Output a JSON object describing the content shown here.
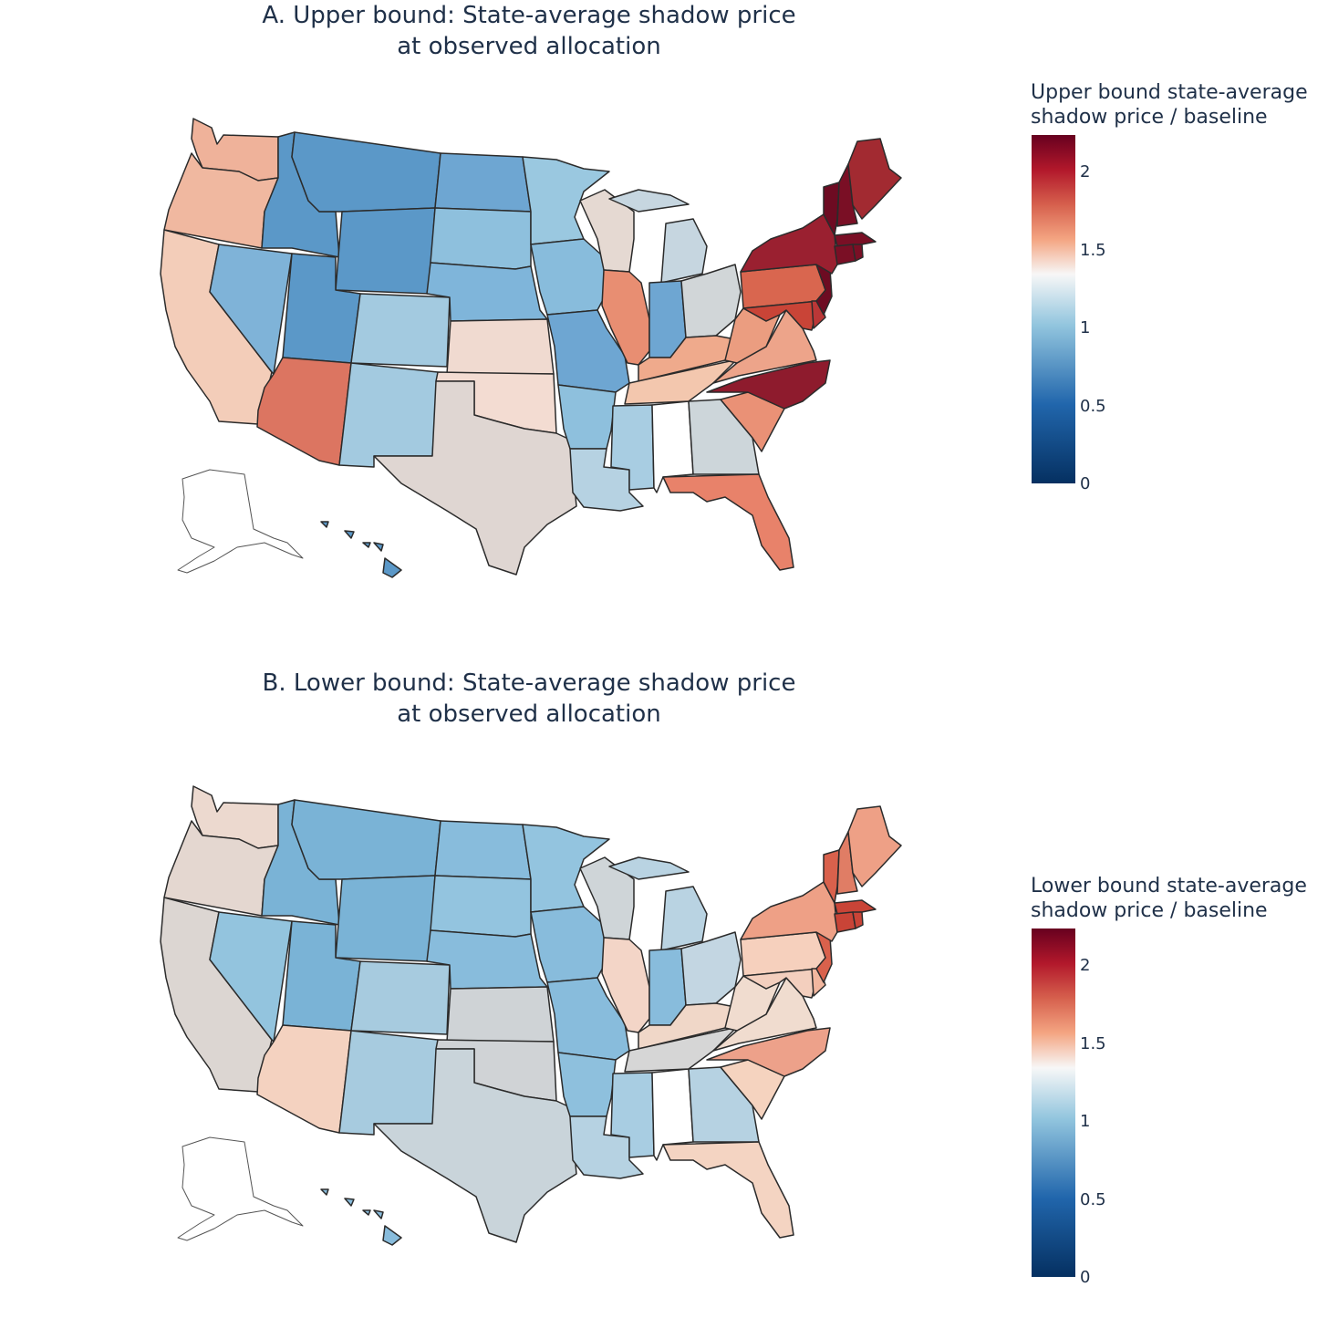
{
  "panels": [
    {
      "id": "A",
      "title_line1": "A. Upper bound: State-average shadow price",
      "title_line2": "at observed allocation",
      "colorbar": {
        "title_line1": "Upper bound state-average",
        "title_line2": "shadow price / baseline",
        "ticks": [
          "0",
          "0.5",
          "1",
          "1.5",
          "2"
        ]
      }
    },
    {
      "id": "B",
      "title_line1": "B. Lower bound: State-average shadow price",
      "title_line2": "at observed allocation",
      "colorbar": {
        "title_line1": "Lower bound state-average",
        "title_line2": "shadow price / baseline",
        "ticks": [
          "0",
          "0.5",
          "1",
          "1.5",
          "2"
        ]
      }
    }
  ],
  "colors": {
    "WA": [
      "#efb29a",
      "#ecd9cf"
    ],
    "OR": [
      "#f0b8a0",
      "#e4d7d0"
    ],
    "CA": [
      "#f3cdb9",
      "#dcd6d2"
    ],
    "ID": [
      "#5b98c8",
      "#7ab3d6"
    ],
    "NV": [
      "#7fb3d8",
      "#93c4de"
    ],
    "MT": [
      "#5b98c8",
      "#7ab3d6"
    ],
    "WY": [
      "#5b98c8",
      "#7ab3d6"
    ],
    "UT": [
      "#5b98c8",
      "#7ab3d6"
    ],
    "AZ": [
      "#dc7561",
      "#f4d2c0"
    ],
    "CO": [
      "#a3cae0",
      "#a7cbdf"
    ],
    "NM": [
      "#a3cae0",
      "#a7cbdf"
    ],
    "ND": [
      "#6ea6d2",
      "#88bcdc"
    ],
    "SD": [
      "#8ec0dd",
      "#93c4df"
    ],
    "NE": [
      "#7fb5da",
      "#88bcdc"
    ],
    "KS": [
      "#f0dad0",
      "#cfd3d6"
    ],
    "OK": [
      "#f3dcd2",
      "#d0d3d6"
    ],
    "TX": [
      "#dfd6d2",
      "#c9d4da"
    ],
    "MN": [
      "#9ac8e0",
      "#93c4df"
    ],
    "IA": [
      "#88bcdc",
      "#88bcdc"
    ],
    "MO": [
      "#6ea6d2",
      "#88bcdc"
    ],
    "AR": [
      "#8ec0dd",
      "#8ec0dd"
    ],
    "LA": [
      "#b6d2e2",
      "#b6d2e2"
    ],
    "WI": [
      "#e5d9d2",
      "#cfd5d8"
    ],
    "IL": [
      "#e88e72",
      "#f3d5c7"
    ],
    "MS": [
      "#a8cde2",
      "#a8cde2"
    ],
    "AL": [
      "#ffffff",
      "#ffffff"
    ],
    "MI": [
      "#c6d6e0",
      "#b9d3e2"
    ],
    "IN": [
      "#6ea6d2",
      "#88bcdc"
    ],
    "OH": [
      "#d1d6d8",
      "#c3d6e2"
    ],
    "KY": [
      "#efaa8c",
      "#f0d7c8"
    ],
    "TN": [
      "#f3c7ae",
      "#d6d6d6"
    ],
    "GA": [
      "#cdd6da",
      "#b6d2e2"
    ],
    "FL": [
      "#e8826a",
      "#f4d4c2"
    ],
    "SC": [
      "#ea9176",
      "#f5d3bf"
    ],
    "NC": [
      "#8e1b2d",
      "#eda18a"
    ],
    "VA": [
      "#eda48a",
      "#f0dccf"
    ],
    "WV": [
      "#eb9d80",
      "#f0dccf"
    ],
    "PA": [
      "#d9664f",
      "#f6d0bd"
    ],
    "NY": [
      "#9a2030",
      "#eea086"
    ],
    "MD": [
      "#c94437",
      "#f3cfbe"
    ],
    "DE": [
      "#bb3737",
      "#f2b79f"
    ],
    "NJ": [
      "#6d0b22",
      "#d9614c"
    ],
    "CT": [
      "#7a0f25",
      "#c94437"
    ],
    "RI": [
      "#7a0f25",
      "#c94437"
    ],
    "MA": [
      "#7a0f25",
      "#c94437"
    ],
    "VT": [
      "#6d0b22",
      "#d9614c"
    ],
    "NH": [
      "#7a0f25",
      "#e07d65"
    ],
    "ME": [
      "#a22a31",
      "#eea086"
    ],
    "HI": [
      "#5b98c8",
      "#88bcdc"
    ],
    "AK": [
      "#ffffff",
      "#ffffff"
    ]
  }
}
